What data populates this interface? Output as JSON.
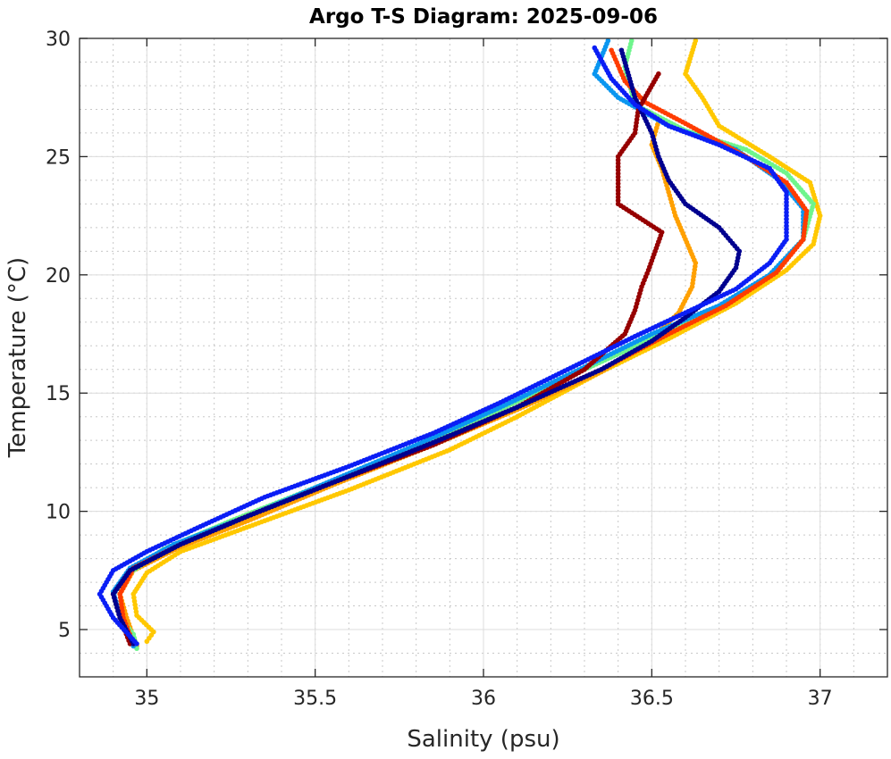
{
  "chart_data": {
    "type": "scatter",
    "title": "Argo T-S Diagram: 2025-09-06",
    "xlabel": "Salinity (psu)",
    "ylabel": "Temperature (°C)",
    "xlim": [
      34.8,
      37.2
    ],
    "ylim": [
      3,
      30
    ],
    "xticks": [
      35,
      35.5,
      36,
      36.5,
      37
    ],
    "xtick_labels": [
      "35",
      "35.5",
      "36",
      "36.5",
      "37"
    ],
    "yticks": [
      5,
      10,
      15,
      20,
      25,
      30
    ],
    "ytick_labels": [
      "5",
      "10",
      "15",
      "20",
      "25",
      "30"
    ],
    "grid": "major solid, minor dotted",
    "legend": "none",
    "series": [
      {
        "name": "profile-yellow",
        "color": "#ffc800",
        "points": [
          [
            35.0,
            4.5
          ],
          [
            35.02,
            4.9
          ],
          [
            34.97,
            5.6
          ],
          [
            34.96,
            6.5
          ],
          [
            35.0,
            7.4
          ],
          [
            35.1,
            8.3
          ],
          [
            35.35,
            9.6
          ],
          [
            35.6,
            10.9
          ],
          [
            35.9,
            12.6
          ],
          [
            36.1,
            14.0
          ],
          [
            36.35,
            15.9
          ],
          [
            36.55,
            17.3
          ],
          [
            36.75,
            18.8
          ],
          [
            36.9,
            20.2
          ],
          [
            36.98,
            21.3
          ],
          [
            37.0,
            22.5
          ],
          [
            36.97,
            23.9
          ],
          [
            36.85,
            25.0
          ],
          [
            36.7,
            26.3
          ],
          [
            36.65,
            27.5
          ],
          [
            36.6,
            28.5
          ],
          [
            36.63,
            29.9
          ]
        ]
      },
      {
        "name": "profile-orange",
        "color": "#ffa000",
        "points": [
          [
            34.97,
            4.3
          ],
          [
            34.94,
            5.5
          ],
          [
            34.92,
            6.5
          ],
          [
            34.96,
            7.5
          ],
          [
            35.1,
            8.5
          ],
          [
            35.3,
            9.6
          ],
          [
            35.55,
            11.1
          ],
          [
            35.85,
            12.8
          ],
          [
            36.1,
            14.3
          ],
          [
            36.35,
            15.9
          ],
          [
            36.5,
            17.3
          ],
          [
            36.58,
            18.4
          ],
          [
            36.62,
            19.5
          ],
          [
            36.63,
            20.5
          ],
          [
            36.6,
            21.5
          ],
          [
            36.57,
            22.5
          ],
          [
            36.55,
            23.5
          ],
          [
            36.53,
            24.5
          ],
          [
            36.5,
            25.5
          ],
          [
            36.52,
            26.5
          ]
        ]
      },
      {
        "name": "profile-green",
        "color": "#6ef58c",
        "points": [
          [
            34.97,
            4.2
          ],
          [
            34.96,
            4.8
          ],
          [
            34.92,
            5.5
          ],
          [
            34.9,
            6.5
          ],
          [
            34.95,
            7.4
          ],
          [
            35.05,
            8.4
          ],
          [
            35.25,
            9.6
          ],
          [
            35.5,
            11.0
          ],
          [
            35.8,
            12.7
          ],
          [
            36.05,
            14.3
          ],
          [
            36.3,
            16.0
          ],
          [
            36.5,
            17.3
          ],
          [
            36.7,
            18.6
          ],
          [
            36.85,
            20.0
          ],
          [
            36.95,
            21.5
          ],
          [
            36.98,
            23.0
          ],
          [
            36.9,
            24.3
          ],
          [
            36.78,
            25.3
          ],
          [
            36.6,
            26.1
          ],
          [
            36.45,
            27.2
          ],
          [
            36.42,
            28.8
          ],
          [
            36.44,
            29.9
          ]
        ]
      },
      {
        "name": "profile-lightblue",
        "color": "#0a96f0",
        "points": [
          [
            34.96,
            4.3
          ],
          [
            34.92,
            5.6
          ],
          [
            34.9,
            6.6
          ],
          [
            34.95,
            7.6
          ],
          [
            35.08,
            8.6
          ],
          [
            35.3,
            9.8
          ],
          [
            35.55,
            11.3
          ],
          [
            35.8,
            12.8
          ],
          [
            36.05,
            14.4
          ],
          [
            36.3,
            16.1
          ],
          [
            36.5,
            17.5
          ],
          [
            36.7,
            18.7
          ],
          [
            36.85,
            20.0
          ],
          [
            36.95,
            21.5
          ],
          [
            36.95,
            22.8
          ],
          [
            36.88,
            24.0
          ],
          [
            36.75,
            25.3
          ],
          [
            36.55,
            26.3
          ],
          [
            36.4,
            27.5
          ],
          [
            36.33,
            28.5
          ],
          [
            36.37,
            29.9
          ]
        ]
      },
      {
        "name": "profile-red",
        "color": "#ff3c00",
        "points": [
          [
            34.96,
            4.4
          ],
          [
            34.93,
            5.5
          ],
          [
            34.92,
            6.5
          ],
          [
            34.96,
            7.6
          ],
          [
            35.1,
            8.6
          ],
          [
            35.3,
            9.8
          ],
          [
            35.55,
            11.2
          ],
          [
            35.85,
            12.9
          ],
          [
            36.1,
            14.4
          ],
          [
            36.35,
            16.0
          ],
          [
            36.55,
            17.5
          ],
          [
            36.72,
            18.7
          ],
          [
            36.87,
            20.1
          ],
          [
            36.95,
            21.5
          ],
          [
            36.96,
            22.7
          ],
          [
            36.9,
            23.9
          ],
          [
            36.78,
            25.0
          ],
          [
            36.6,
            26.4
          ],
          [
            36.48,
            27.3
          ],
          [
            36.42,
            28.2
          ],
          [
            36.38,
            29.5
          ]
        ]
      },
      {
        "name": "profile-darkred",
        "color": "#960000",
        "points": [
          [
            34.95,
            4.4
          ],
          [
            34.92,
            5.5
          ],
          [
            34.9,
            6.5
          ],
          [
            34.95,
            7.5
          ],
          [
            35.1,
            8.6
          ],
          [
            35.3,
            9.8
          ],
          [
            35.55,
            11.2
          ],
          [
            35.85,
            12.8
          ],
          [
            36.1,
            14.4
          ],
          [
            36.3,
            16.0
          ],
          [
            36.42,
            17.5
          ],
          [
            36.45,
            18.5
          ],
          [
            36.47,
            19.5
          ],
          [
            36.49,
            20.2
          ],
          [
            36.53,
            21.8
          ],
          [
            36.4,
            23.0
          ],
          [
            36.4,
            24.0
          ],
          [
            36.4,
            25.0
          ],
          [
            36.45,
            26.0
          ],
          [
            36.46,
            27.0
          ],
          [
            36.52,
            28.5
          ]
        ]
      },
      {
        "name": "profile-darkblue",
        "color": "#00008f",
        "points": [
          [
            34.96,
            4.4
          ],
          [
            34.92,
            5.5
          ],
          [
            34.9,
            6.5
          ],
          [
            34.95,
            7.5
          ],
          [
            35.1,
            8.6
          ],
          [
            35.3,
            9.8
          ],
          [
            35.55,
            11.2
          ],
          [
            35.85,
            12.9
          ],
          [
            36.1,
            14.4
          ],
          [
            36.35,
            16.0
          ],
          [
            36.5,
            17.2
          ],
          [
            36.6,
            18.2
          ],
          [
            36.7,
            19.3
          ],
          [
            36.75,
            20.3
          ],
          [
            36.76,
            21.0
          ],
          [
            36.7,
            22.0
          ],
          [
            36.6,
            23.0
          ],
          [
            36.55,
            24.0
          ],
          [
            36.52,
            25.0
          ],
          [
            36.5,
            26.0
          ],
          [
            36.45,
            27.5
          ],
          [
            36.41,
            29.5
          ]
        ]
      },
      {
        "name": "profile-blue",
        "color": "#0a1ef5",
        "points": [
          [
            34.97,
            4.4
          ],
          [
            34.9,
            5.5
          ],
          [
            34.86,
            6.5
          ],
          [
            34.9,
            7.5
          ],
          [
            35.0,
            8.3
          ],
          [
            35.15,
            9.3
          ],
          [
            35.35,
            10.6
          ],
          [
            35.6,
            11.9
          ],
          [
            35.85,
            13.3
          ],
          [
            36.05,
            14.6
          ],
          [
            36.25,
            16.0
          ],
          [
            36.45,
            17.4
          ],
          [
            36.6,
            18.4
          ],
          [
            36.75,
            19.4
          ],
          [
            36.85,
            20.5
          ],
          [
            36.9,
            21.5
          ],
          [
            36.9,
            22.5
          ],
          [
            36.9,
            23.5
          ],
          [
            36.85,
            24.5
          ],
          [
            36.7,
            25.5
          ],
          [
            36.55,
            26.3
          ],
          [
            36.45,
            27.2
          ],
          [
            36.38,
            28.3
          ],
          [
            36.33,
            29.6
          ]
        ]
      }
    ]
  }
}
